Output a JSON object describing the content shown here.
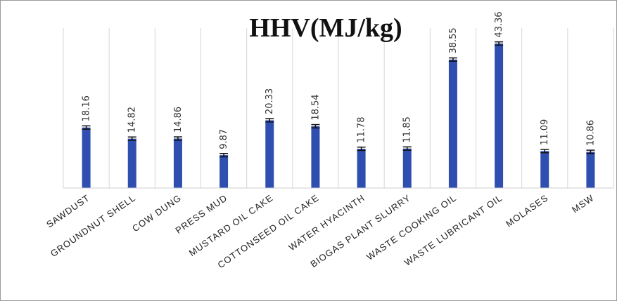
{
  "chart_data": {
    "type": "bar",
    "title": "HHV(MJ/kg)",
    "xlabel": "",
    "ylabel": "",
    "ylim": [
      0,
      48
    ],
    "grid": "vertical-category-separators",
    "legend": "none",
    "error_bars": true,
    "bar_color": "#2f4fb0",
    "categories": [
      "SAWDUST",
      "GROUNDNUT SHELL",
      "COW DUNG",
      "PRESS MUD",
      "MUSTARD OIL CAKE",
      "COTTONSEED OIL CAKE",
      "WATER HYACINTH",
      "BIOGAS PLANT SLURRY",
      "WASTE COOKING OIL",
      "WASTE LUBRICANT OIL",
      "MOLASES",
      "MSW"
    ],
    "values": [
      18.16,
      14.82,
      14.86,
      9.87,
      20.33,
      18.54,
      11.78,
      11.85,
      38.55,
      43.36,
      11.09,
      10.86
    ],
    "labels": [
      "18.16",
      "14.82",
      "14.86",
      "9.87",
      "20.33",
      "18.54",
      "11.78",
      "11.85",
      "38.55",
      "43.36",
      "11.09",
      "10.86"
    ]
  }
}
